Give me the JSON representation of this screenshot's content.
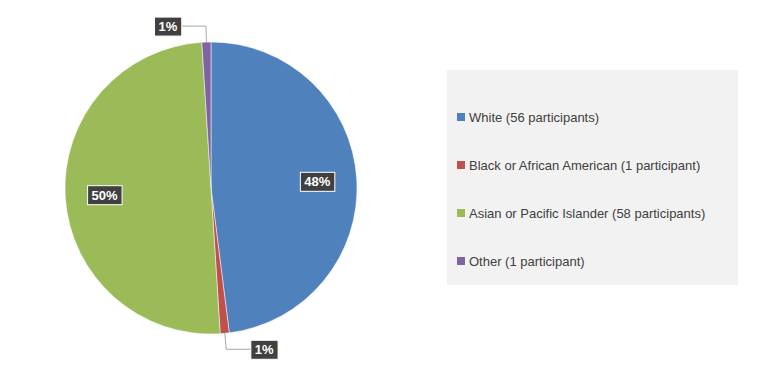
{
  "chart_data": {
    "type": "pie",
    "categories": [
      "White (56 participants)",
      "Black or African American (1 participant)",
      "Asian or Pacific Islander (58 participants)",
      "Other (1 participant)"
    ],
    "values": [
      48,
      1,
      50,
      1
    ],
    "value_labels": [
      "48%",
      "1%",
      "50%",
      "1%"
    ],
    "colors": [
      "#4f81bd",
      "#c0504d",
      "#9bbb59",
      "#8064a2"
    ],
    "data_labels": true,
    "legend": "right"
  }
}
